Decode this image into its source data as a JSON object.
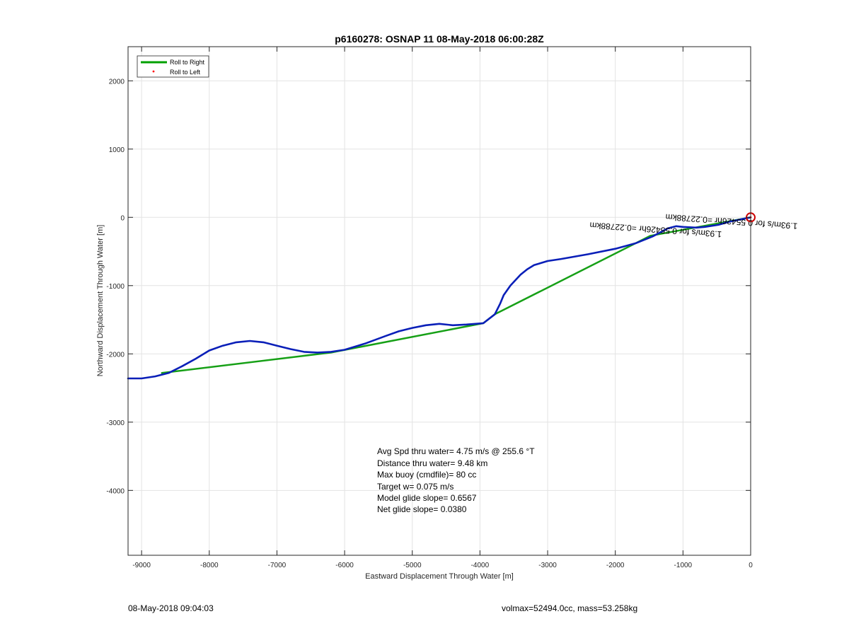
{
  "chart_data": {
    "type": "line",
    "title": "p6160278: OSNAP 11 08-May-2018 06:00:28Z",
    "xlabel": "Eastward Displacement Through Water [m]",
    "ylabel": "Northward Displacement Through Water [m]",
    "xlim": [
      -9200,
      0
    ],
    "ylim": [
      -4950,
      2500
    ],
    "xticks": [
      -9000,
      -8000,
      -7000,
      -6000,
      -5000,
      -4000,
      -3000,
      -2000,
      -1000,
      0
    ],
    "yticks": [
      -4000,
      -3000,
      -2000,
      -1000,
      0,
      1000,
      2000
    ],
    "grid": true,
    "legend": {
      "placement": "top-left",
      "entries": [
        {
          "label": "Roll to Right",
          "color": "#00a000",
          "style": "line"
        },
        {
          "label": "Roll to Left",
          "color": "#ff0000",
          "style": "dot"
        }
      ]
    },
    "series": [
      {
        "name": "Roll to Right",
        "color": "#16a016",
        "x": [
          0,
          -1480,
          -3780,
          -3950,
          -6200,
          -8700
        ],
        "y": [
          0,
          -270,
          -1420,
          -1550,
          -1980,
          -2280
        ]
      },
      {
        "color": "#0a1fb8",
        "x": [
          0,
          -300,
          -480,
          -680,
          -800,
          -1000,
          -1100,
          -1220,
          -1450,
          -1700,
          -2000,
          -2400,
          -2800,
          -3000,
          -3200,
          -3300,
          -3400,
          -3550,
          -3650,
          -3700,
          -3780,
          -3950,
          -4200,
          -4400,
          -4600,
          -4800,
          -5000,
          -5200,
          -5400,
          -5700,
          -6000,
          -6200,
          -6400,
          -6600,
          -6800,
          -7000,
          -7200,
          -7400,
          -7600,
          -7800,
          -8000,
          -8200,
          -8400,
          -8600,
          -8800,
          -9000,
          -9200
        ],
        "y": [
          0,
          -60,
          -110,
          -140,
          -150,
          -140,
          -130,
          -160,
          -280,
          -380,
          -460,
          -540,
          -610,
          -640,
          -700,
          -760,
          -840,
          -1000,
          -1140,
          -1260,
          -1420,
          -1550,
          -1570,
          -1580,
          -1560,
          -1580,
          -1620,
          -1670,
          -1740,
          -1850,
          -1940,
          -1970,
          -1980,
          -1970,
          -1930,
          -1880,
          -1830,
          -1810,
          -1830,
          -1880,
          -1950,
          -2070,
          -2180,
          -2280,
          -2330,
          -2360,
          -2360
        ]
      }
    ],
    "annotations": [
      {
        "text": "1.93m/s for 0.55426hr =0.22788km",
        "x": -1400,
        "y": -140,
        "rotation_deg": 184
      },
      {
        "text": "1.93m/s for 0.55426hr =0.22788km",
        "x": -280,
        "y": -20,
        "rotation_deg": 184
      }
    ],
    "markers": [
      {
        "type": "circle",
        "x": 0,
        "y": 0,
        "color": "#cc0000"
      }
    ],
    "stats": [
      "Avg Spd thru water=  4.75 m/s @ 255.6 °T",
      "Distance thru water=  9.48 km",
      "Max buoy (cmdfile)= 80 cc",
      "Target w= 0.075 m/s",
      "Model glide slope= 0.6567",
      "Net glide slope= 0.0380"
    ]
  },
  "footer": {
    "left": "08-May-2018 09:04:03",
    "right": "volmax=52494.0cc, mass=53.258kg"
  }
}
